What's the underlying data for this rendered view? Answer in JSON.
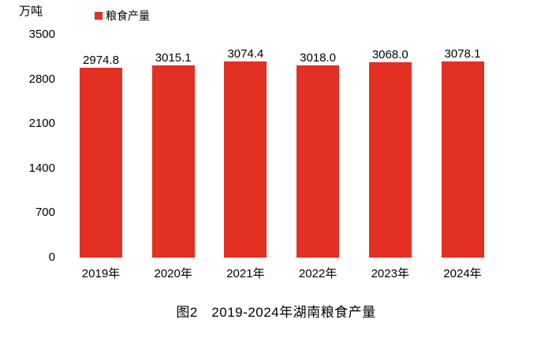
{
  "chart_data": {
    "type": "bar",
    "title": "图2　2019-2024年湖南粮食产量",
    "ylabel": "万吨",
    "xlabel": "",
    "legend": "粮食产量",
    "legend_position": "top",
    "categories": [
      "2019年",
      "2020年",
      "2021年",
      "2022年",
      "2023年",
      "2024年"
    ],
    "values": [
      2974.8,
      3015.1,
      3074.4,
      3018.0,
      3068.0,
      3078.1
    ],
    "value_labels": [
      "2974.8",
      "3015.1",
      "3074.4",
      "3018.0",
      "3068.0",
      "3078.1"
    ],
    "y_ticks": [
      0,
      700,
      1400,
      2100,
      2800,
      3500
    ],
    "ylim": [
      0,
      3500
    ],
    "grid": false,
    "axis_lines": false,
    "bar_color": "#e23022",
    "text_color": "#000000",
    "background": "#ffffff"
  }
}
